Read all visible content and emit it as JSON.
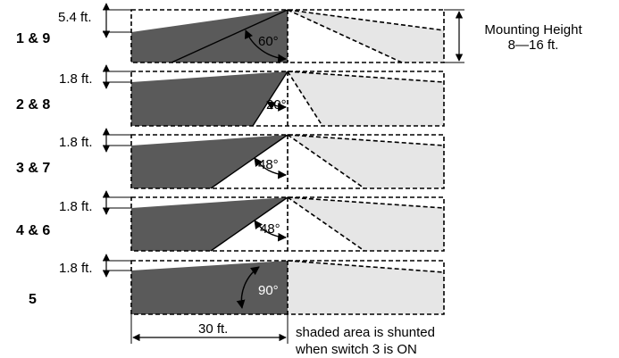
{
  "mounting_height": {
    "line1": "Mounting Height",
    "line2": "8—16 ft."
  },
  "rows": [
    {
      "label": "1 & 9",
      "offset": "5.4 ft.",
      "angle": "60°",
      "angle_deg": 60
    },
    {
      "label": "2 & 8",
      "offset": "1.8 ft.",
      "angle": "20°",
      "angle_deg": 20
    },
    {
      "label": "3 & 7",
      "offset": "1.8 ft.",
      "angle": "48°",
      "angle_deg": 48
    },
    {
      "label": "4 & 6",
      "offset": "1.8 ft.",
      "angle": "48°",
      "angle_deg": 48
    },
    {
      "label": "5",
      "offset": "1.8 ft.",
      "angle": "90°",
      "angle_deg": 90
    }
  ],
  "width_label": "30 ft.",
  "note": {
    "line1": "shaded area is shunted",
    "line2": "when switch 3 is ON"
  },
  "colors": {
    "dark_fill": "#5a5a5a",
    "light_fill": "#e6e6e6"
  }
}
